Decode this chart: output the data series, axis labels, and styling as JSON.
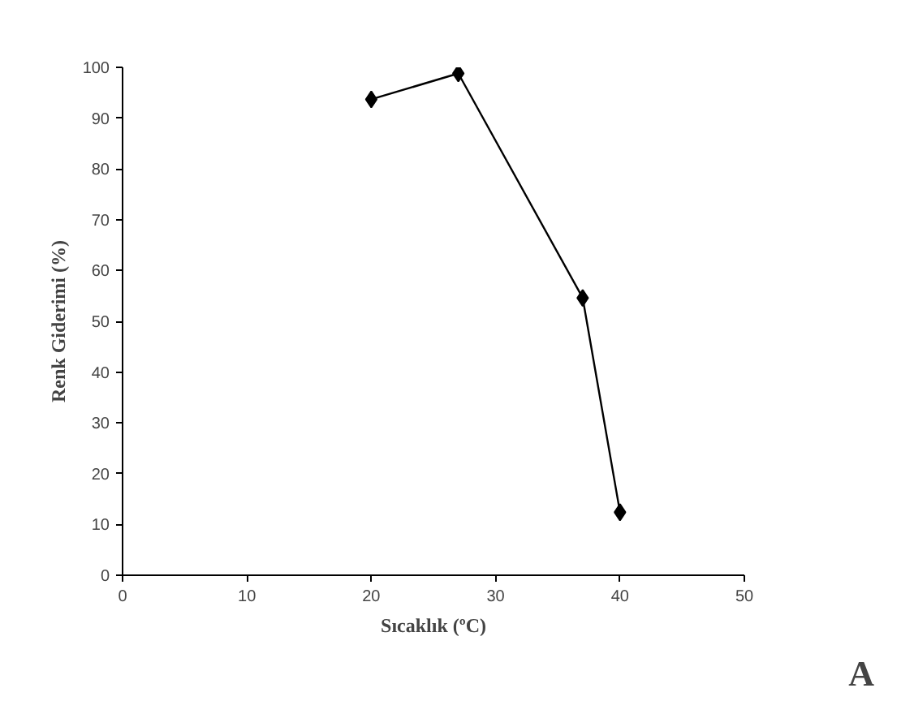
{
  "chart_data": {
    "type": "line",
    "xlabel": "Sıcaklık (ºC)",
    "ylabel": "Renk Giderimi (%)",
    "x": [
      20,
      27,
      37,
      40
    ],
    "series": [
      {
        "color": "#000000",
        "values": [
          93.7,
          98.8,
          54.6,
          12.4
        ]
      }
    ],
    "xlim": [
      0,
      50
    ],
    "ylim": [
      0,
      100
    ],
    "xticks": [
      0,
      10,
      20,
      30,
      40,
      50
    ],
    "yticks": [
      0,
      10,
      20,
      30,
      40,
      50,
      60,
      70,
      80,
      90,
      100
    ],
    "marker": "diamond",
    "line_style": "solid",
    "grid": false,
    "annotations": [
      "A"
    ]
  }
}
